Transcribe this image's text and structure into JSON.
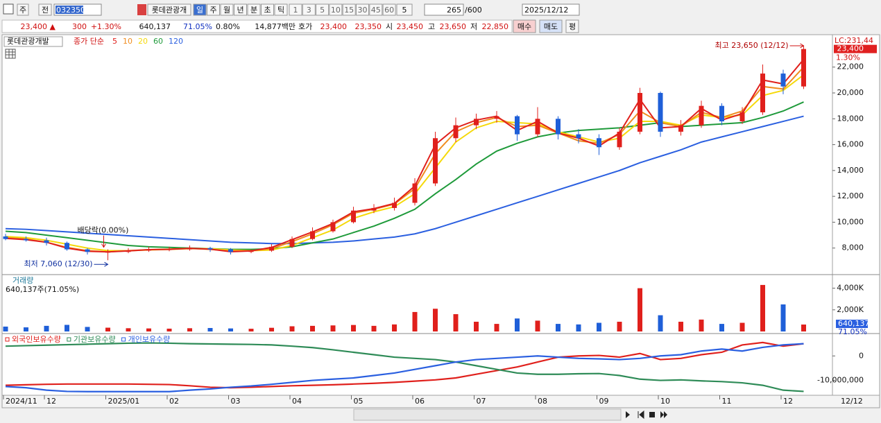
{
  "toolbar": {
    "period_type": "주",
    "compare": "전",
    "code": "032350",
    "name": "롯데관광개",
    "intervals": [
      "일",
      "주",
      "월",
      "년",
      "분",
      "초",
      "틱"
    ],
    "minutes": [
      "1",
      "3",
      "5",
      "10",
      "15",
      "30",
      "45",
      "60"
    ],
    "multiplier": "5",
    "count": "265",
    "max_count": "/600",
    "date": "2025/12/12"
  },
  "quote": {
    "price": "23,400 ▲",
    "change": "300",
    "change_pct": "+1.30%",
    "volume": "640,137",
    "volume_ratio": "71.05%",
    "turnover": "0.80%",
    "amount": "14,877백만",
    "ask_label": "호가",
    "ask": "23,400",
    "bid": "23,350",
    "open_label": "시",
    "open": "23,450",
    "high_label": "고",
    "high": "23,650",
    "low_label": "저",
    "low": "22,850",
    "buy": "매수",
    "sell": "매도",
    "avg": "평"
  },
  "chart_data": [
    {
      "type": "candlestick",
      "title": "롯데관광개발",
      "legend_prefix": "종가 단순",
      "up_color": "#e0201c",
      "down_color": "#1f5fd8",
      "open": [
        8900,
        8700,
        8600,
        8400,
        7900,
        7700,
        7700,
        7800,
        7900,
        7900,
        8000,
        7900,
        7700,
        7800,
        8100,
        8700,
        9300,
        10000,
        10900,
        11100,
        11500,
        13000,
        16500,
        17500,
        18000,
        18200,
        16800,
        18000,
        16800,
        16500,
        15800,
        17000,
        20000,
        17000,
        17500,
        19000,
        17800,
        18500,
        21500,
        20500
      ],
      "high": [
        9100,
        8900,
        8800,
        8500,
        8000,
        7900,
        8000,
        8100,
        8100,
        8200,
        8100,
        8000,
        7900,
        8300,
        8900,
        9600,
        10200,
        11200,
        11400,
        11900,
        13400,
        17000,
        18100,
        18400,
        18600,
        18300,
        18900,
        18200,
        17200,
        16800,
        17300,
        20400,
        20100,
        17900,
        19400,
        19200,
        18900,
        22200,
        21800,
        23650
      ],
      "low": [
        8600,
        8500,
        8200,
        7800,
        7500,
        7060,
        7600,
        7700,
        7750,
        7800,
        7700,
        7500,
        7600,
        7700,
        8000,
        8600,
        9200,
        9900,
        10700,
        10900,
        11300,
        12800,
        16200,
        17200,
        17700,
        16300,
        16600,
        16400,
        16100,
        15200,
        15600,
        16800,
        16600,
        16700,
        17300,
        17500,
        17600,
        18300,
        19900,
        20300
      ],
      "close": [
        8700,
        8600,
        8400,
        7900,
        7700,
        7700,
        7800,
        7900,
        7900,
        8000,
        7900,
        7700,
        7800,
        8100,
        8700,
        9300,
        10000,
        10900,
        11100,
        11500,
        13000,
        16500,
        17500,
        18000,
        18200,
        16800,
        18000,
        16800,
        16500,
        15800,
        17000,
        20000,
        17000,
        17500,
        19000,
        17800,
        18500,
        21500,
        20500,
        23400
      ],
      "series": [
        {
          "name": "5",
          "color": "#e0201c",
          "values": [
            8750,
            8650,
            8450,
            8000,
            7750,
            7700,
            7780,
            7880,
            7900,
            7980,
            7920,
            7720,
            7780,
            8050,
            8650,
            9250,
            9900,
            10800,
            11050,
            11450,
            12800,
            16000,
            17300,
            17900,
            18200,
            17100,
            17800,
            16900,
            16500,
            15900,
            16900,
            19500,
            17300,
            17400,
            18800,
            17900,
            18400,
            21000,
            20700,
            22600
          ]
        },
        {
          "name": "10",
          "color": "#f08c1e",
          "values": [
            8800,
            8700,
            8450,
            8050,
            7800,
            7700,
            7800,
            7880,
            7920,
            7980,
            7900,
            7780,
            7800,
            7950,
            8500,
            9100,
            9800,
            10700,
            11000,
            11400,
            12600,
            15300,
            17000,
            17700,
            18100,
            17400,
            17500,
            16900,
            16300,
            16100,
            16800,
            18600,
            17700,
            17400,
            18500,
            18100,
            18600,
            20500,
            20300,
            22000
          ]
        },
        {
          "name": "20",
          "color": "#f5d90a",
          "values": [
            8900,
            8800,
            8600,
            8300,
            8000,
            7800,
            7800,
            7850,
            7900,
            7950,
            7950,
            7850,
            7800,
            7850,
            8200,
            8800,
            9400,
            10300,
            10800,
            11200,
            12200,
            14200,
            16200,
            17300,
            17800,
            17700,
            17600,
            17000,
            16600,
            16200,
            16500,
            17800,
            17800,
            17500,
            18300,
            18100,
            18300,
            19800,
            20200,
            21400
          ]
        },
        {
          "name": "60",
          "color": "#1e9a3a",
          "values": [
            9300,
            9200,
            9000,
            8800,
            8600,
            8400,
            8200,
            8100,
            8050,
            8000,
            7950,
            7900,
            7900,
            7950,
            8100,
            8400,
            8700,
            9200,
            9700,
            10300,
            11000,
            12200,
            13300,
            14500,
            15500,
            16100,
            16600,
            16900,
            17100,
            17200,
            17300,
            17500,
            17700,
            17400,
            17500,
            17600,
            17700,
            18100,
            18600,
            19300
          ]
        },
        {
          "name": "120",
          "color": "#2a5fe0",
          "values": [
            9500,
            9450,
            9350,
            9250,
            9150,
            9050,
            8950,
            8850,
            8750,
            8650,
            8550,
            8450,
            8400,
            8350,
            8350,
            8400,
            8450,
            8550,
            8700,
            8850,
            9100,
            9500,
            10000,
            10500,
            11000,
            11500,
            12000,
            12500,
            13000,
            13500,
            14000,
            14600,
            15100,
            15600,
            16200,
            16600,
            17000,
            17400,
            17800,
            18200
          ]
        }
      ],
      "ylim": [
        6000,
        24400
      ],
      "yticks": [
        {
          "value": 8000,
          "label": "8,000"
        },
        {
          "value": 10000,
          "label": "10,000"
        },
        {
          "value": 12000,
          "label": "12,000"
        },
        {
          "value": 14000,
          "label": "14,000"
        },
        {
          "value": 16000,
          "label": "16,000"
        },
        {
          "value": 18000,
          "label": "18,000"
        },
        {
          "value": 20000,
          "label": "20,000"
        },
        {
          "value": 22000,
          "label": "22,000"
        }
      ],
      "annotations": {
        "lc": "LC:231,44",
        "last_price": "23,400",
        "last_change": "1.30%",
        "high_note": "최고 23,650 (12/12)",
        "low_note": "최저 7,060 (12/30)",
        "dividend": "배당락(0.00%)"
      }
    },
    {
      "type": "bar",
      "title": "거래량",
      "subtitle": "640,137주(71.05%)",
      "values": [
        450,
        380,
        520,
        610,
        420,
        350,
        300,
        280,
        260,
        300,
        320,
        280,
        250,
        340,
        480,
        520,
        560,
        600,
        520,
        650,
        1800,
        2100,
        1600,
        900,
        700,
        1200,
        1000,
        700,
        650,
        800,
        900,
        4000,
        1500,
        900,
        1100,
        700,
        800,
        4300,
        2500,
        640.137
      ],
      "last_label": "640,137",
      "last_ratio": "71.05%",
      "ylim": [
        0,
        5000
      ],
      "yticks": [
        {
          "value": 2000,
          "label": "2,000K"
        },
        {
          "value": 4000,
          "label": "4,000K"
        }
      ]
    },
    {
      "type": "line",
      "series": [
        {
          "name": "외국인보유수량",
          "color": "#e0201c",
          "values": [
            -12000000,
            -11800000,
            -11600000,
            -11500000,
            -11500000,
            -11500000,
            -11500000,
            -11600000,
            -11700000,
            -12200000,
            -12800000,
            -13000000,
            -12800000,
            -12500000,
            -12200000,
            -12000000,
            -11800000,
            -11500000,
            -11200000,
            -10800000,
            -10300000,
            -9800000,
            -9000000,
            -7500000,
            -6000000,
            -4500000,
            -2500000,
            -500000,
            0,
            200000,
            -500000,
            1000000,
            -1500000,
            -1000000,
            500000,
            1500000,
            4500000,
            5500000,
            4000000,
            5000000
          ]
        },
        {
          "name": "기관보유수량",
          "color": "#2e8b57",
          "values": [
            4000000,
            4200000,
            4400000,
            4600000,
            4800000,
            5000000,
            5200000,
            5300000,
            5200000,
            5000000,
            4900000,
            4800000,
            4700000,
            4500000,
            4000000,
            3400000,
            2500000,
            1500000,
            500000,
            -500000,
            -1000000,
            -1500000,
            -2500000,
            -4000000,
            -5500000,
            -7000000,
            -7500000,
            -7500000,
            -7300000,
            -7200000,
            -8000000,
            -9500000,
            -10000000,
            -9800000,
            -10200000,
            -10500000,
            -11000000,
            -12000000,
            -14000000,
            -14500000
          ]
        },
        {
          "name": "개인보유수량",
          "color": "#2a5fe0",
          "values": [
            -12500000,
            -13000000,
            -14000000,
            -14500000,
            -14600000,
            -14600000,
            -14600000,
            -14600000,
            -14600000,
            -14000000,
            -13500000,
            -12800000,
            -12300000,
            -11600000,
            -10800000,
            -10000000,
            -9500000,
            -9000000,
            -8000000,
            -7000000,
            -5500000,
            -4000000,
            -2500000,
            -1500000,
            -1000000,
            -500000,
            0,
            -500000,
            -1000000,
            -1200000,
            -1500000,
            -1000000,
            0,
            500000,
            2000000,
            2800000,
            2000000,
            3500000,
            4500000,
            5000000
          ]
        }
      ],
      "ylim": [
        -15800000,
        8300000
      ],
      "yticks": [
        {
          "value": -10000000,
          "label": "-10,000,000"
        },
        0
      ],
      "categories": [
        "2024/11",
        null,
        "12",
        null,
        null,
        "2025/01",
        null,
        null,
        "02",
        null,
        null,
        "03",
        null,
        null,
        "04",
        null,
        null,
        "05",
        null,
        null,
        "06",
        null,
        null,
        "07",
        null,
        null,
        "08",
        null,
        null,
        "09",
        null,
        null,
        "10",
        null,
        null,
        "11",
        null,
        null,
        "12",
        null
      ],
      "x_end_label": "12/12"
    }
  ]
}
